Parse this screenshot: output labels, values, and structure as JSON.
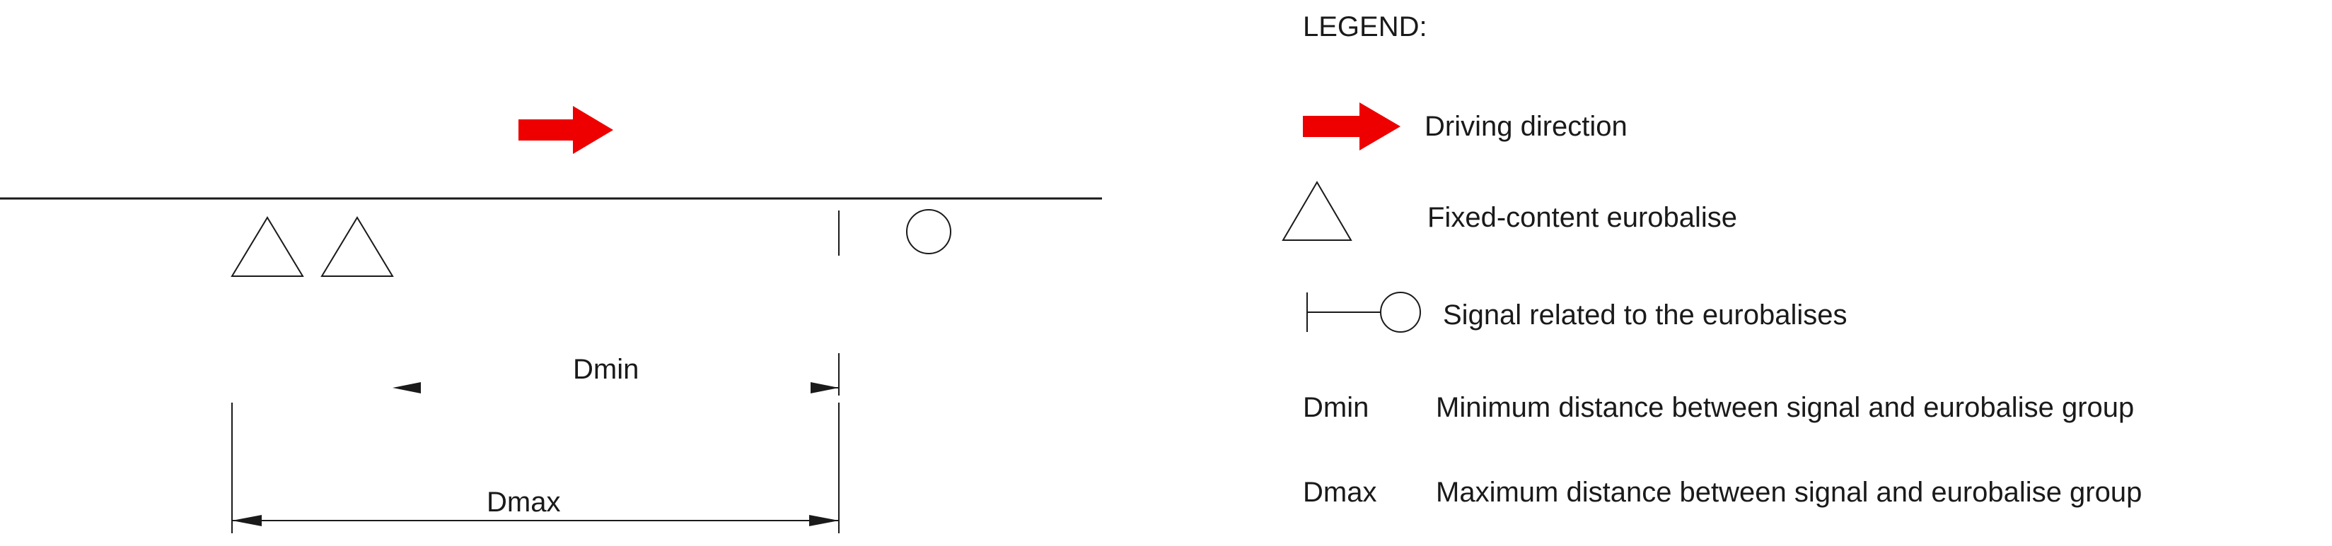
{
  "diagram": {
    "dmin_label": "Dmin",
    "dmax_label": "Dmax",
    "colors": {
      "arrow": "#ee0000",
      "line": "#1a1a1a"
    }
  },
  "legend": {
    "title": "LEGEND:",
    "items": [
      {
        "icon": "red-arrow-icon",
        "label": "Driving direction"
      },
      {
        "icon": "triangle-icon",
        "label": "Fixed-content eurobalise"
      },
      {
        "icon": "signal-icon",
        "label": "Signal related to the eurobalises"
      },
      {
        "abbr": "Dmin",
        "label": "Minimum distance between signal and eurobalise group"
      },
      {
        "abbr": "Dmax",
        "label": "Maximum distance between signal and eurobalise group"
      }
    ]
  }
}
